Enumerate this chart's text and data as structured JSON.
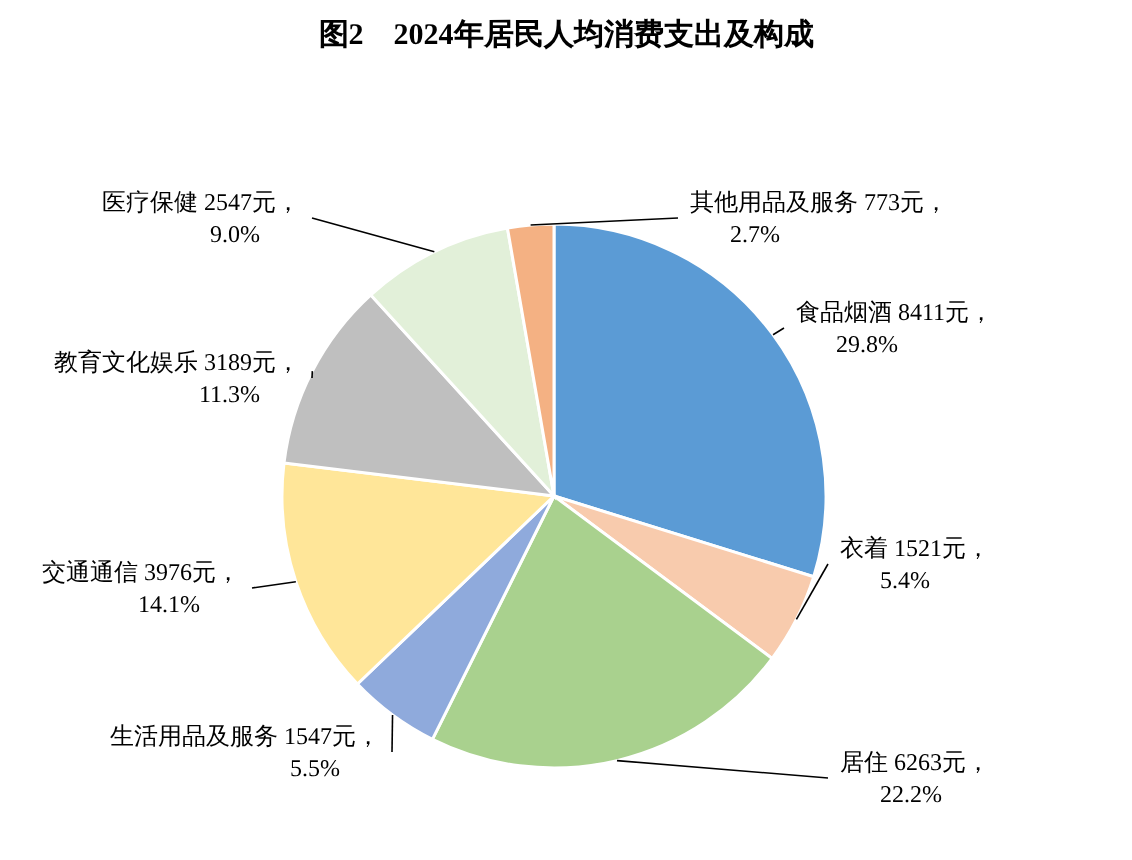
{
  "chart_data": {
    "type": "pie",
    "title": "图2　2024年居民人均消费支出及构成",
    "categories": [
      "食品烟酒",
      "衣着",
      "居住",
      "生活用品及服务",
      "交通通信",
      "教育文化娱乐",
      "医疗保健",
      "其他用品及服务"
    ],
    "values": [
      8411,
      1521,
      6263,
      1547,
      3976,
      3189,
      2547,
      773
    ],
    "value_labels": [
      "8411元，\n29.8%",
      "1521元，\n5.4%",
      "6263元，\n22.2%",
      "1547元，\n5.5%",
      "3976元，\n14.1%",
      "3189元，\n11.3%",
      "2547元，\n9.0%",
      "773元，\n2.7%"
    ],
    "colors": [
      "#5b9bd5",
      "#f8cbad",
      "#a9d18e",
      "#8faadc",
      "#ffe699",
      "#bfbfbf",
      "#e2f0d9",
      "#f4b183"
    ]
  }
}
